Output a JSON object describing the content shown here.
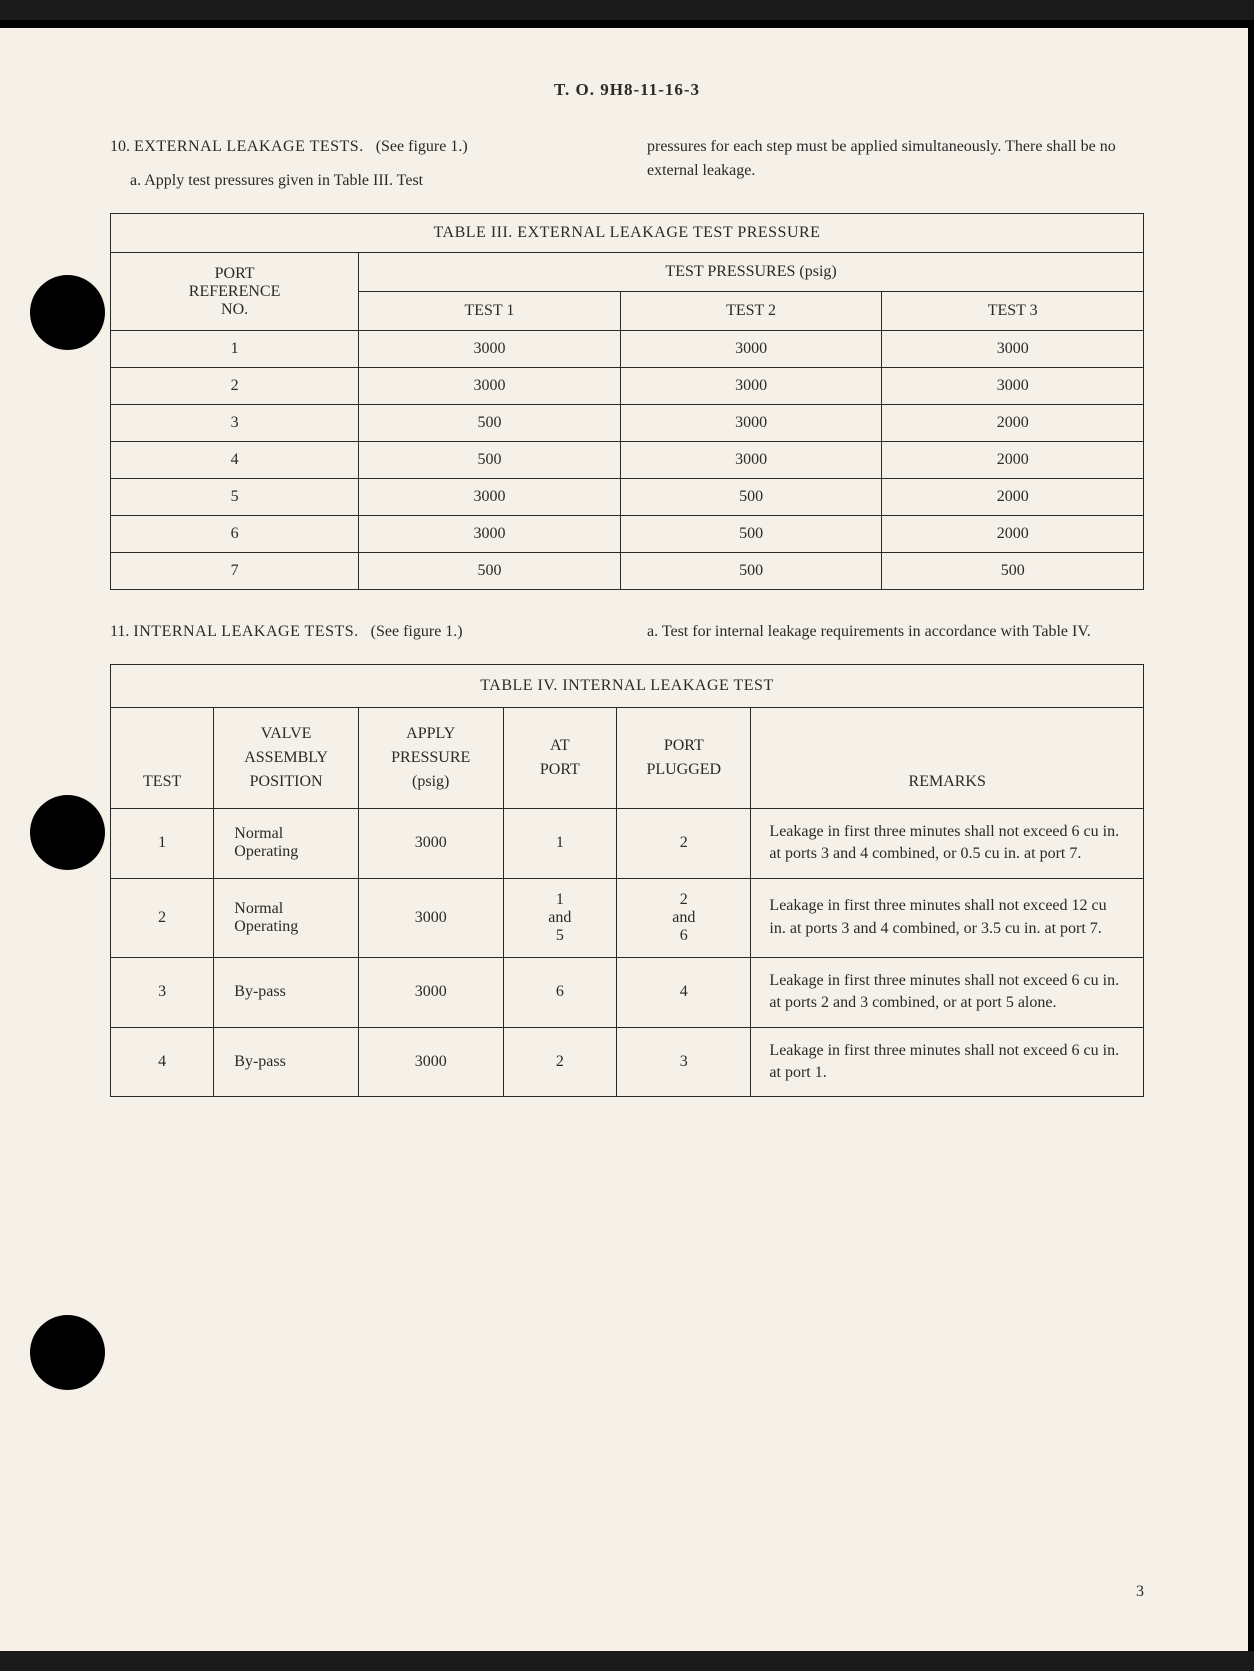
{
  "doc_header": "T. O. 9H8-11-16-3",
  "page_number": "3",
  "section10": {
    "num": "10.",
    "title": "EXTERNAL LEAKAGE TESTS.",
    "ref": "(See figure 1.)",
    "sub_a": "a.  Apply test pressures given in Table III.  Test",
    "right_text": "pressures for each step must be applied simultaneously. There shall be no external leakage."
  },
  "section11": {
    "num": "11.",
    "title": "INTERNAL LEAKAGE TESTS.",
    "ref": "(See figure 1.)",
    "right_text": "a.  Test for internal leakage requirements in accordance with Table IV."
  },
  "table3": {
    "title": "TABLE III.   EXTERNAL LEAKAGE TEST PRESSURE",
    "col1_header": "PORT REFERENCE NO.",
    "span_header": "TEST PRESSURES (psig)",
    "sub_headers": [
      "TEST 1",
      "TEST 2",
      "TEST 3"
    ],
    "rows": [
      [
        "1",
        "3000",
        "3000",
        "3000"
      ],
      [
        "2",
        "3000",
        "3000",
        "3000"
      ],
      [
        "3",
        "500",
        "3000",
        "2000"
      ],
      [
        "4",
        "500",
        "3000",
        "2000"
      ],
      [
        "5",
        "3000",
        "500",
        "2000"
      ],
      [
        "6",
        "3000",
        "500",
        "2000"
      ],
      [
        "7",
        "500",
        "500",
        "500"
      ]
    ],
    "col_widths": [
      "24%",
      "25.3%",
      "25.3%",
      "25.3%"
    ]
  },
  "table4": {
    "title": "TABLE IV.  INTERNAL LEAKAGE TEST",
    "headers": [
      "TEST",
      "VALVE ASSEMBLY POSITION",
      "APPLY PRESSURE (psig)",
      "AT PORT",
      "PORT PLUGGED",
      "REMARKS"
    ],
    "rows": [
      {
        "test": "1",
        "valve": "Normal Operating",
        "press": "3000",
        "at": "1",
        "plug": "2",
        "rem": "Leakage in first three minutes shall not exceed 6 cu in. at ports 3 and 4 combined, or 0.5 cu in. at port 7."
      },
      {
        "test": "2",
        "valve": "Normal Operating",
        "press": "3000",
        "at": "1\nand\n5",
        "plug": "2\nand\n6",
        "rem": "Leakage in first three minutes shall not exceed 12 cu in. at ports 3 and 4 combined, or 3.5 cu in. at port 7."
      },
      {
        "test": "3",
        "valve": "By-pass",
        "press": "3000",
        "at": "6",
        "plug": "4",
        "rem": "Leakage in first three minutes shall not exceed 6 cu in. at ports 2 and 3 combined, or at port 5 alone."
      },
      {
        "test": "4",
        "valve": "By-pass",
        "press": "3000",
        "at": "2",
        "plug": "3",
        "rem": "Leakage in first three minutes shall not exceed 6 cu in. at port 1."
      }
    ],
    "col_widths": [
      "10%",
      "14%",
      "14%",
      "11%",
      "13%",
      "38%"
    ]
  },
  "colors": {
    "page_bg": "#f5f0e8",
    "text": "#2a2a2a",
    "border": "#2a2a2a",
    "outer_bg": "#1a1a1a"
  }
}
